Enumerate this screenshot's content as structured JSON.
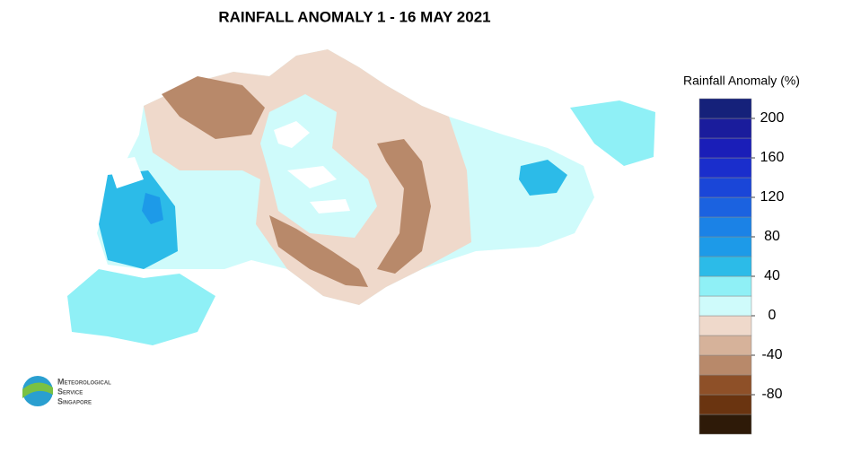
{
  "title": "RAINFALL ANOMALY 1 - 16 MAY 2021",
  "legend": {
    "title": "Rainfall Anomaly (%)",
    "bounds": [
      -120,
      -100,
      -80,
      -60,
      -40,
      -20,
      0,
      20,
      40,
      60,
      80,
      100,
      120,
      140,
      160,
      180,
      200,
      220
    ],
    "colors": [
      "#2e1a08",
      "#6a3410",
      "#8e5028",
      "#b8896a",
      "#d6b29a",
      "#efd9cb",
      "#cffbfb",
      "#8ff0f6",
      "#2cbbe8",
      "#1d9ae8",
      "#1b82e6",
      "#1b62e0",
      "#1a46d8",
      "#1a2ecc",
      "#1a1eb8",
      "#1a1c9c",
      "#15217a"
    ],
    "ticks": [
      200,
      160,
      120,
      80,
      40,
      0,
      -40,
      -80
    ]
  },
  "logo": {
    "lines": [
      "Meteorological",
      "Service",
      "Singapore"
    ]
  }
}
